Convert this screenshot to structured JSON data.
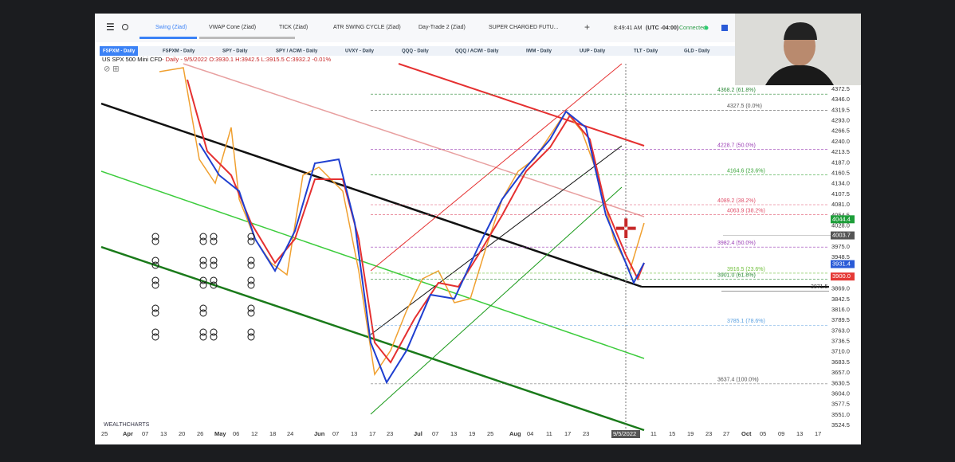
{
  "toolbar": {
    "tabs": [
      "Swing (Ziad)",
      "VWAP Cone (Ziad)",
      "TICK (Ziad)",
      "ATR SWING CYCLE (Ziad)",
      "Day-Trade 2 (Ziad)",
      "SUPER CHARGED FUTU..."
    ],
    "plus": "+",
    "time": "8:49:41 AM",
    "timezone": "(UTC -04:00)",
    "status": "Connected"
  },
  "symbol_tabs": [
    "FSPXM - Daily",
    "FSPXM - Daily",
    "SPY - Daily",
    "SPY / ACWI - Daily",
    "UVXY - Daily",
    "QQQ - Daily",
    "QQQ / ACWI - Daily",
    "IWM - Daily",
    "UUP - Daily",
    "TLT - Daily",
    "GLD - Daily"
  ],
  "info": {
    "symbol": "US SPX 500 Mini CFD",
    "ohlc": "- Daily - 9/5/2022 O:3930.1 H:3942.5 L:3915.5 C:3932.2 -0.01%"
  },
  "price_axis": [
    "4372.5",
    "4346.0",
    "4319.5",
    "4293.0",
    "4266.5",
    "4240.0",
    "4213.5",
    "4187.0",
    "4160.5",
    "4134.0",
    "4107.5",
    "4081.0",
    "4054.5",
    "4028.0",
    "3975.0",
    "3948.5",
    "3869.0",
    "3842.5",
    "3816.0",
    "3789.5",
    "3763.0",
    "3736.5",
    "3710.0",
    "3683.5",
    "3657.0",
    "3630.5",
    "3604.0",
    "3577.5",
    "3551.0",
    "3524.5"
  ],
  "price_badges": [
    {
      "text": "4044.4",
      "color": "#1e9e3a"
    },
    {
      "text": "4003.7",
      "color": "#555555"
    },
    {
      "text": "3931.4",
      "color": "#2a5bd7"
    },
    {
      "text": "3900.0",
      "color": "#e53935"
    }
  ],
  "fib_labels": [
    {
      "text": "4368.2 (61.8%)",
      "color": "#2e8b3a"
    },
    {
      "text": "4327.5 (0.0%)",
      "color": "#555555"
    },
    {
      "text": "4228.7 (50.0%)",
      "color": "#9b3fb5"
    },
    {
      "text": "4164.6 (23.6%)",
      "color": "#3aa53a"
    },
    {
      "text": "4089.2 (38.2%)",
      "color": "#e0506a"
    },
    {
      "text": "4063.9 (38.2%)",
      "color": "#e0506a"
    },
    {
      "text": "3982.4 (50.0%)",
      "color": "#9b3fb5"
    },
    {
      "text": "3916.5 (23.6%)",
      "color": "#6fbf3a"
    },
    {
      "text": "3901.0 (61.8%)",
      "color": "#2e8b3a"
    },
    {
      "text": "3785.1 (78.6%)",
      "color": "#5aa0e0"
    },
    {
      "text": "3637.4 (100.0%)",
      "color": "#555555"
    },
    {
      "text": "3871.5",
      "color": "#333333"
    }
  ],
  "date_axis": [
    "25",
    "Apr",
    "07",
    "13",
    "20",
    "26",
    "May",
    "06",
    "12",
    "18",
    "24",
    "Jun",
    "07",
    "13",
    "17",
    "23",
    "Jul",
    "07",
    "13",
    "19",
    "25",
    "Aug",
    "04",
    "11",
    "17",
    "23",
    "9/5/2022",
    "11",
    "15",
    "19",
    "23",
    "27",
    "Oct",
    "05",
    "09",
    "13",
    "17"
  ],
  "logo": "WEALTHCHARTS"
}
